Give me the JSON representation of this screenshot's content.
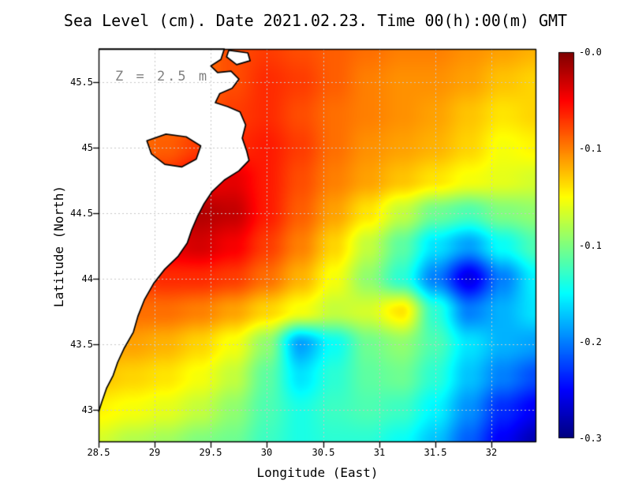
{
  "title": "Sea Level (cm). Date 2021.02.23. Time 00(h):00(m) GMT",
  "colors": {
    "background": "#ffffff",
    "land": "#ffffff",
    "coastline": "#000000",
    "grid": "#c8c8c8",
    "annotation": "#808080",
    "frame": "#000000"
  },
  "chart_data": {
    "type": "heatmap",
    "title": "Sea Level (cm). Date 2021.02.23. Time 00(h):00(m) GMT",
    "xlabel": "Longitude (East)",
    "ylabel": "Latitude (North)",
    "annotation": "Z = 2.5 m",
    "colormap": "jet",
    "value_range": [
      -0.3,
      0.0
    ],
    "colorbar_labels": [
      "-0.0",
      "-0.1",
      "-0.1",
      "-0.2",
      "-0.3"
    ],
    "x_ticks": [
      28.5,
      29,
      29.5,
      30,
      30.5,
      31,
      31.5,
      32
    ],
    "x_tick_labels": [
      "28.5",
      "29",
      "29.5",
      "30",
      "30.5",
      "31",
      "31.5",
      "32"
    ],
    "y_ticks": [
      45.5,
      45,
      44.5,
      44,
      43.5,
      43
    ],
    "y_tick_labels": [
      "45.5",
      "45",
      "44.5",
      "44",
      "43.5",
      "43"
    ],
    "x": [
      28.5,
      28.8,
      29.1,
      29.4,
      29.7,
      30.0,
      30.3,
      30.6,
      30.9,
      31.2,
      31.5,
      31.8,
      32.1,
      32.4
    ],
    "y": [
      45.75,
      45.5,
      45.25,
      45.0,
      44.75,
      44.5,
      44.25,
      44.0,
      43.75,
      43.5,
      43.25,
      43.0,
      42.75
    ],
    "values": [
      [
        -0.08,
        -0.08,
        -0.08,
        -0.07,
        -0.06,
        -0.055,
        -0.06,
        -0.065,
        -0.07,
        -0.075,
        -0.075,
        -0.08,
        -0.085,
        -0.09
      ],
      [
        -0.08,
        -0.08,
        -0.075,
        -0.07,
        -0.06,
        -0.05,
        -0.055,
        -0.065,
        -0.075,
        -0.08,
        -0.08,
        -0.085,
        -0.095,
        -0.1
      ],
      [
        -0.075,
        -0.075,
        -0.07,
        -0.065,
        -0.055,
        -0.05,
        -0.06,
        -0.07,
        -0.075,
        -0.08,
        -0.085,
        -0.095,
        -0.105,
        -0.1
      ],
      [
        -0.07,
        -0.07,
        -0.065,
        -0.055,
        -0.05,
        -0.045,
        -0.055,
        -0.07,
        -0.08,
        -0.085,
        -0.09,
        -0.1,
        -0.115,
        -0.11
      ],
      [
        -0.065,
        -0.06,
        -0.05,
        -0.035,
        -0.03,
        -0.045,
        -0.06,
        -0.075,
        -0.085,
        -0.095,
        -0.105,
        -0.115,
        -0.12,
        -0.125
      ],
      [
        -0.06,
        -0.05,
        -0.03,
        -0.015,
        -0.02,
        -0.045,
        -0.065,
        -0.085,
        -0.105,
        -0.13,
        -0.155,
        -0.165,
        -0.15,
        -0.145
      ],
      [
        -0.06,
        -0.045,
        -0.03,
        -0.025,
        -0.035,
        -0.055,
        -0.075,
        -0.1,
        -0.13,
        -0.16,
        -0.195,
        -0.215,
        -0.185,
        -0.165
      ],
      [
        -0.065,
        -0.055,
        -0.05,
        -0.05,
        -0.055,
        -0.07,
        -0.09,
        -0.115,
        -0.145,
        -0.175,
        -0.225,
        -0.27,
        -0.225,
        -0.19
      ],
      [
        -0.075,
        -0.07,
        -0.07,
        -0.075,
        -0.085,
        -0.1,
        -0.115,
        -0.13,
        -0.125,
        -0.105,
        -0.175,
        -0.225,
        -0.21,
        -0.195
      ],
      [
        -0.085,
        -0.085,
        -0.09,
        -0.1,
        -0.115,
        -0.145,
        -0.215,
        -0.185,
        -0.155,
        -0.145,
        -0.165,
        -0.195,
        -0.21,
        -0.215
      ],
      [
        -0.095,
        -0.1,
        -0.105,
        -0.115,
        -0.13,
        -0.16,
        -0.195,
        -0.175,
        -0.16,
        -0.155,
        -0.175,
        -0.205,
        -0.225,
        -0.24
      ],
      [
        -0.11,
        -0.115,
        -0.12,
        -0.13,
        -0.145,
        -0.165,
        -0.18,
        -0.17,
        -0.165,
        -0.17,
        -0.19,
        -0.22,
        -0.25,
        -0.265
      ],
      [
        -0.125,
        -0.135,
        -0.14,
        -0.15,
        -0.155,
        -0.17,
        -0.18,
        -0.175,
        -0.175,
        -0.185,
        -0.205,
        -0.235,
        -0.265,
        -0.285
      ]
    ],
    "land": {
      "main": [
        [
          28.5,
          45.75
        ],
        [
          29.62,
          45.75
        ],
        [
          29.59,
          45.67
        ],
        [
          29.5,
          45.62
        ],
        [
          29.56,
          45.57
        ],
        [
          29.68,
          45.58
        ],
        [
          29.75,
          45.52
        ],
        [
          29.69,
          45.45
        ],
        [
          29.58,
          45.41
        ],
        [
          29.54,
          45.34
        ],
        [
          29.65,
          45.31
        ],
        [
          29.76,
          45.27
        ],
        [
          29.81,
          45.17
        ],
        [
          29.78,
          45.07
        ],
        [
          29.82,
          44.97
        ],
        [
          29.84,
          44.9
        ],
        [
          29.75,
          44.82
        ],
        [
          29.62,
          44.75
        ],
        [
          29.51,
          44.66
        ],
        [
          29.44,
          44.57
        ],
        [
          29.38,
          44.47
        ],
        [
          29.33,
          44.37
        ],
        [
          29.29,
          44.27
        ],
        [
          29.21,
          44.17
        ],
        [
          29.09,
          44.07
        ],
        [
          28.99,
          43.96
        ],
        [
          28.91,
          43.84
        ],
        [
          28.85,
          43.71
        ],
        [
          28.81,
          43.59
        ],
        [
          28.73,
          43.47
        ],
        [
          28.67,
          43.36
        ],
        [
          28.63,
          43.26
        ],
        [
          28.57,
          43.16
        ],
        [
          28.53,
          43.06
        ],
        [
          28.5,
          42.98
        ]
      ],
      "lagoon": [
        [
          28.93,
          45.05
        ],
        [
          29.1,
          45.1
        ],
        [
          29.28,
          45.08
        ],
        [
          29.41,
          45.01
        ],
        [
          29.37,
          44.91
        ],
        [
          29.24,
          44.85
        ],
        [
          29.09,
          44.87
        ],
        [
          28.97,
          44.95
        ]
      ],
      "island": [
        [
          29.66,
          45.74
        ],
        [
          29.83,
          45.72
        ],
        [
          29.85,
          45.66
        ],
        [
          29.73,
          45.63
        ],
        [
          29.64,
          45.69
        ]
      ]
    }
  }
}
